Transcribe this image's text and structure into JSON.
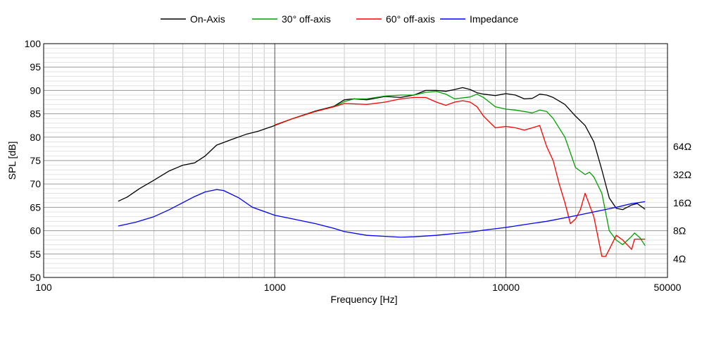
{
  "chart_data": {
    "type": "line",
    "title": "",
    "xlabel": "Frequency [Hz]",
    "ylabel": "SPL [dB]",
    "x_scale": "log",
    "xlim": [
      100,
      50000
    ],
    "ylim": [
      50,
      100
    ],
    "x_ticks": [
      {
        "value": 100,
        "label": "100"
      },
      {
        "value": 1000,
        "label": "1000"
      },
      {
        "value": 10000,
        "label": "10000"
      },
      {
        "value": 50000,
        "label": "50000"
      }
    ],
    "y_ticks": [
      {
        "value": 100,
        "label": "100"
      },
      {
        "value": 95,
        "label": "95"
      },
      {
        "value": 90,
        "label": "90"
      },
      {
        "value": 85,
        "label": "85"
      },
      {
        "value": 80,
        "label": "80"
      },
      {
        "value": 75,
        "label": "75"
      },
      {
        "value": 70,
        "label": "70"
      },
      {
        "value": 65,
        "label": "65"
      },
      {
        "value": 60,
        "label": "60"
      },
      {
        "value": 55,
        "label": "55"
      },
      {
        "value": 50,
        "label": "50"
      }
    ],
    "y2_ticks": [
      {
        "label": "64Ω",
        "at_spl": 78
      },
      {
        "label": "32Ω",
        "at_spl": 72
      },
      {
        "label": "16Ω",
        "at_spl": 66
      },
      {
        "label": "8Ω",
        "at_spl": 60
      },
      {
        "label": "4Ω",
        "at_spl": 54
      }
    ],
    "grid": true,
    "legend_position": "top-center",
    "series": [
      {
        "name": "On-Axis",
        "color": "#000000",
        "points": [
          [
            210,
            66.3
          ],
          [
            230,
            67.2
          ],
          [
            260,
            69
          ],
          [
            300,
            70.8
          ],
          [
            350,
            72.8
          ],
          [
            400,
            74
          ],
          [
            450,
            74.5
          ],
          [
            500,
            76
          ],
          [
            560,
            78.3
          ],
          [
            650,
            79.5
          ],
          [
            750,
            80.6
          ],
          [
            850,
            81.3
          ],
          [
            1000,
            82.5
          ],
          [
            1200,
            84
          ],
          [
            1500,
            85.6
          ],
          [
            1800,
            86.6
          ],
          [
            2000,
            88
          ],
          [
            2200,
            88.2
          ],
          [
            2500,
            88
          ],
          [
            3000,
            88.7
          ],
          [
            3500,
            88.5
          ],
          [
            4000,
            89
          ],
          [
            4500,
            90
          ],
          [
            5000,
            90
          ],
          [
            5500,
            89.8
          ],
          [
            6000,
            90.2
          ],
          [
            6500,
            90.6
          ],
          [
            7000,
            90.2
          ],
          [
            7500,
            89.5
          ],
          [
            8000,
            89.2
          ],
          [
            9000,
            88.9
          ],
          [
            10000,
            89.3
          ],
          [
            11000,
            89
          ],
          [
            12000,
            88.2
          ],
          [
            13000,
            88.3
          ],
          [
            14000,
            89.2
          ],
          [
            15000,
            89
          ],
          [
            16000,
            88.5
          ],
          [
            18000,
            87
          ],
          [
            20000,
            84.5
          ],
          [
            22000,
            82.5
          ],
          [
            24000,
            79
          ],
          [
            26000,
            73
          ],
          [
            28000,
            67
          ],
          [
            30000,
            64.8
          ],
          [
            32000,
            64.5
          ],
          [
            35000,
            65.5
          ],
          [
            37000,
            65.8
          ],
          [
            40000,
            64.6
          ]
        ]
      },
      {
        "name": "30° off-axis",
        "color": "#00a000",
        "points": [
          [
            1000,
            82.6
          ],
          [
            1200,
            84
          ],
          [
            1500,
            85.5
          ],
          [
            1800,
            86.5
          ],
          [
            2000,
            87.6
          ],
          [
            2200,
            88.2
          ],
          [
            2500,
            88.2
          ],
          [
            3000,
            88.8
          ],
          [
            3500,
            89
          ],
          [
            4000,
            89
          ],
          [
            4500,
            89.6
          ],
          [
            5000,
            89.8
          ],
          [
            5500,
            89.2
          ],
          [
            6000,
            88.2
          ],
          [
            7000,
            88.6
          ],
          [
            7500,
            89.2
          ],
          [
            8000,
            88.5
          ],
          [
            9000,
            86.5
          ],
          [
            10000,
            86
          ],
          [
            11000,
            85.8
          ],
          [
            12000,
            85.5
          ],
          [
            13000,
            85.2
          ],
          [
            14000,
            85.8
          ],
          [
            15000,
            85.5
          ],
          [
            16000,
            84
          ],
          [
            18000,
            80
          ],
          [
            20000,
            73.5
          ],
          [
            22000,
            72
          ],
          [
            23000,
            72.5
          ],
          [
            24000,
            71.5
          ],
          [
            26000,
            68
          ],
          [
            28000,
            60
          ],
          [
            30000,
            58
          ],
          [
            32000,
            57
          ],
          [
            35000,
            58.8
          ],
          [
            36000,
            59.5
          ],
          [
            38000,
            58.5
          ],
          [
            40000,
            56.8
          ]
        ]
      },
      {
        "name": "60° off-axis",
        "color": "#ff0000",
        "points": [
          [
            1000,
            82.6
          ],
          [
            1200,
            84
          ],
          [
            1500,
            85.5
          ],
          [
            1800,
            86.5
          ],
          [
            2000,
            87.2
          ],
          [
            2500,
            87
          ],
          [
            3000,
            87.5
          ],
          [
            3500,
            88.2
          ],
          [
            4000,
            88.5
          ],
          [
            4500,
            88.5
          ],
          [
            5000,
            87.5
          ],
          [
            5500,
            86.8
          ],
          [
            6000,
            87.5
          ],
          [
            6500,
            87.8
          ],
          [
            7000,
            87.5
          ],
          [
            7500,
            86.5
          ],
          [
            8000,
            84.5
          ],
          [
            9000,
            82
          ],
          [
            10000,
            82.3
          ],
          [
            11000,
            82
          ],
          [
            12000,
            81.5
          ],
          [
            13000,
            82
          ],
          [
            14000,
            82.5
          ],
          [
            15000,
            78
          ],
          [
            16000,
            75
          ],
          [
            17000,
            70
          ],
          [
            18000,
            66
          ],
          [
            19000,
            61.5
          ],
          [
            20000,
            62.5
          ],
          [
            21000,
            64.5
          ],
          [
            22000,
            68
          ],
          [
            24000,
            63
          ],
          [
            26000,
            54.5
          ],
          [
            27000,
            54.5
          ],
          [
            28000,
            56
          ],
          [
            30000,
            59
          ],
          [
            32000,
            58
          ],
          [
            35000,
            56
          ],
          [
            36000,
            58.2
          ],
          [
            40000,
            58.2
          ]
        ]
      },
      {
        "name": "Impedance",
        "color": "#0000ff",
        "points": [
          [
            210,
            61
          ],
          [
            250,
            61.8
          ],
          [
            300,
            63
          ],
          [
            350,
            64.5
          ],
          [
            400,
            66
          ],
          [
            450,
            67.3
          ],
          [
            500,
            68.3
          ],
          [
            560,
            68.8
          ],
          [
            600,
            68.6
          ],
          [
            700,
            67
          ],
          [
            800,
            65
          ],
          [
            1000,
            63.3
          ],
          [
            1200,
            62.5
          ],
          [
            1500,
            61.5
          ],
          [
            1800,
            60.5
          ],
          [
            2000,
            59.8
          ],
          [
            2500,
            59
          ],
          [
            3000,
            58.8
          ],
          [
            3500,
            58.6
          ],
          [
            4000,
            58.7
          ],
          [
            5000,
            59
          ],
          [
            6000,
            59.4
          ],
          [
            7000,
            59.7
          ],
          [
            8000,
            60.1
          ],
          [
            10000,
            60.7
          ],
          [
            12000,
            61.3
          ],
          [
            15000,
            62
          ],
          [
            20000,
            63.2
          ],
          [
            25000,
            64.2
          ],
          [
            30000,
            65
          ],
          [
            35000,
            65.8
          ],
          [
            40000,
            66.2
          ]
        ]
      }
    ]
  }
}
